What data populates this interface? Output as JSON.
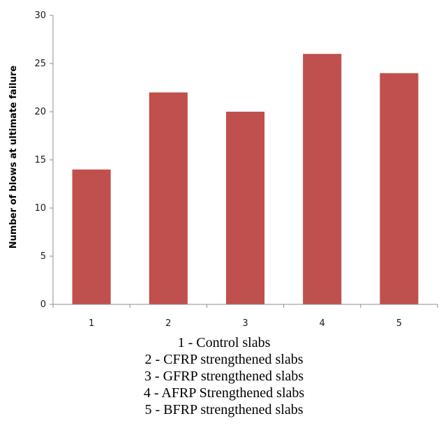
{
  "chart_data": {
    "type": "bar",
    "categories": [
      "1",
      "2",
      "3",
      "4",
      "5"
    ],
    "values": [
      14,
      22,
      20,
      26,
      24
    ],
    "title": "",
    "xlabel": "",
    "ylabel": "Number of blows at ultimate failure",
    "ylim": [
      0,
      30
    ],
    "yticks": [
      0,
      5,
      10,
      15,
      20,
      25,
      30
    ],
    "grid": false,
    "legend": "none",
    "bar_color": "#c0504d",
    "axis_color": "#8c8c8c"
  },
  "caption": {
    "lines": [
      "1 - Control slabs",
      "2 - CFRP strengthened slabs",
      "3 - GFRP strengthened slabs",
      "4 - AFRP Strengthened slabs",
      "5 - BFRP strengthened slabs"
    ]
  }
}
